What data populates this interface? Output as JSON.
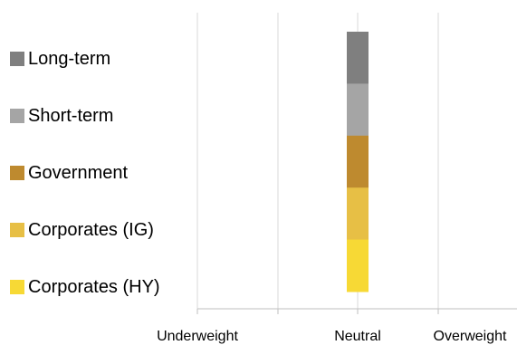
{
  "chart_data": {
    "type": "bar",
    "orientation": "horizontal-stacked",
    "categories": [
      "Underweight",
      "Neutral",
      "Overweight"
    ],
    "series": [
      {
        "name": "Long-term",
        "color": "#7f7f7f",
        "position": "Neutral"
      },
      {
        "name": "Short-term",
        "color": "#a5a5a5",
        "position": "Neutral"
      },
      {
        "name": "Government",
        "color": "#be8a2f",
        "position": "Neutral"
      },
      {
        "name": "Corporates (IG)",
        "color": "#e7bf45",
        "position": "Neutral"
      },
      {
        "name": "Corporates (HY)",
        "color": "#f7d935",
        "position": "Neutral"
      }
    ],
    "legend_position": "left",
    "grid": true
  }
}
